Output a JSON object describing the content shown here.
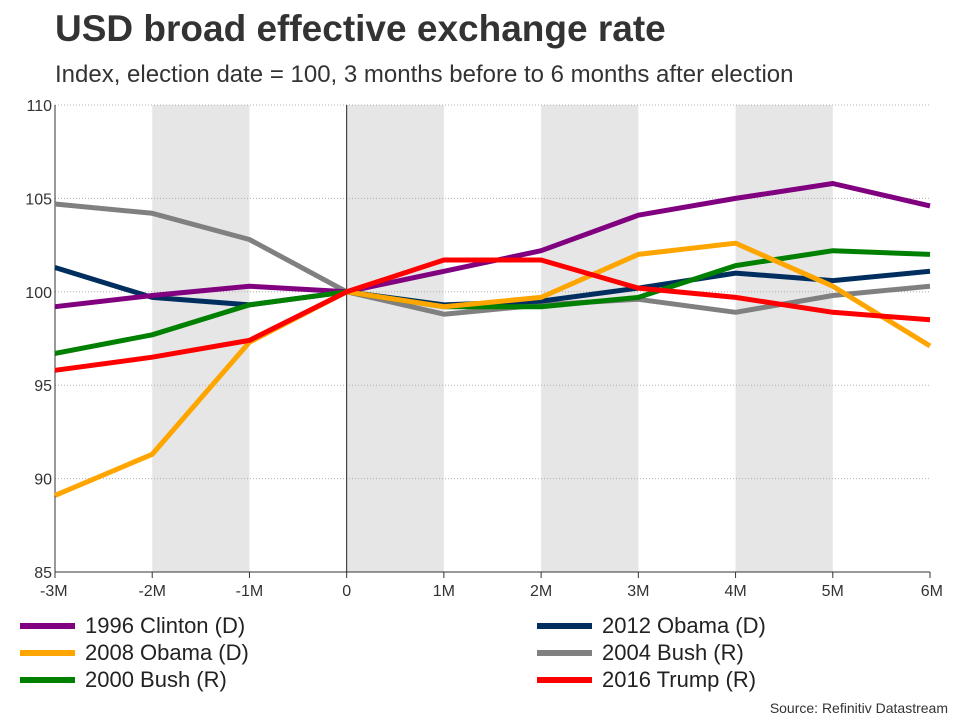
{
  "title": "USD broad effective exchange rate",
  "subtitle": "Index, election date = 100, 3 months before to 6 months after election",
  "source": "Source: Refinitiv Datastream",
  "chart_data": {
    "type": "line",
    "title": "USD broad effective exchange rate",
    "subtitle": "Index, election date = 100, 3 months before to 6 months after election",
    "xlabel": "",
    "ylabel": "",
    "x": [
      -3,
      -2,
      -1,
      0,
      1,
      2,
      3,
      4,
      5,
      6
    ],
    "x_tick_labels": [
      "-3M",
      "-2M",
      "-1M",
      "0",
      "1M",
      "2M",
      "3M",
      "4M",
      "5M",
      "6M"
    ],
    "ylim": [
      85,
      110
    ],
    "y_ticks": [
      85,
      90,
      95,
      100,
      105,
      110
    ],
    "grid": "horizontal dotted",
    "shaded_months": [
      -2,
      0,
      2,
      4
    ],
    "reference_line_x": 0,
    "legend_position": "bottom",
    "series": [
      {
        "name": "1996 Clinton (D)",
        "color": "#800080",
        "values": [
          99.2,
          99.8,
          100.3,
          100.0,
          101.1,
          102.2,
          104.1,
          105.0,
          105.8,
          104.6
        ]
      },
      {
        "name": "2008 Obama (D)",
        "color": "#FFA500",
        "values": [
          89.1,
          91.3,
          97.3,
          100.0,
          99.2,
          99.7,
          102.0,
          102.6,
          100.3,
          97.1
        ]
      },
      {
        "name": "2000 Bush (R)",
        "color": "#008000",
        "values": [
          96.7,
          97.7,
          99.3,
          100.0,
          99.2,
          99.2,
          99.7,
          101.4,
          102.2,
          102.0
        ]
      },
      {
        "name": "2012 Obama (D)",
        "color": "#002F5F",
        "values": [
          101.3,
          99.7,
          99.3,
          100.0,
          99.3,
          99.5,
          100.2,
          101.0,
          100.6,
          101.1
        ]
      },
      {
        "name": "2004 Bush (R)",
        "color": "#808080",
        "values": [
          104.7,
          104.2,
          102.8,
          100.0,
          98.8,
          99.3,
          99.6,
          98.9,
          99.8,
          100.3
        ]
      },
      {
        "name": "2016 Trump (R)",
        "color": "#FF0000",
        "values": [
          95.8,
          96.5,
          97.4,
          100.0,
          101.7,
          101.7,
          100.2,
          99.7,
          98.9,
          98.5
        ]
      }
    ]
  }
}
